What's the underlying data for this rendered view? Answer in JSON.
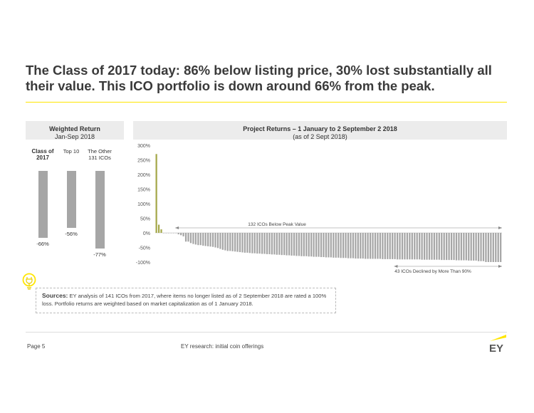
{
  "title": "The Class of 2017 today: 86% below listing price, 30% lost substantially all their value. This ICO portfolio is down around 66% from the peak.",
  "left_panel": {
    "title": "Weighted Return",
    "subtitle": "Jan-Sep 2018"
  },
  "right_panel": {
    "title": "Project Returns – 1 January to 2 September 2 2018",
    "subtitle": "(as of 2 Sept 2018)"
  },
  "sources": {
    "label": "Sources:",
    "text": " EY analysis of 141 ICOs from 2017, where items no longer listed as of 2 September 2018 are rated a 100% loss.  Portfolio returns are weighted based on market capitalization as of 1 January 2018."
  },
  "footer": {
    "page": "Page 5",
    "center": "EY research: initial coin offerings",
    "logo": "EY"
  },
  "colors": {
    "accent": "#ffe600",
    "bar": "#a6a6a6",
    "positive": "#a5a84a"
  },
  "chart_data": [
    {
      "type": "bar",
      "title": "Weighted Return",
      "subtitle": "Jan-Sep 2018",
      "categories": [
        "Class of 2017",
        "Top 10",
        "The Other 131 ICOs"
      ],
      "values": [
        -66,
        -56,
        -77
      ],
      "labels": [
        "-66%",
        "-56%",
        "-77%"
      ]
    },
    {
      "type": "bar",
      "title": "Project Returns – 1 January to 2 September 2 2018",
      "subtitle": "(as of 2 Sept 2018)",
      "ylim": [
        -100,
        300
      ],
      "yticks": [
        "300%",
        "250%",
        "200%",
        "150%",
        "100%",
        "50%",
        "0%",
        "-50%",
        "-100%"
      ],
      "ytick_values": [
        300,
        250,
        200,
        150,
        100,
        50,
        0,
        -50,
        -100
      ],
      "annotations": [
        "132 ICOs Below Peak Value",
        "43 ICOs Declined by More Than 90%"
      ],
      "values": [
        270,
        28,
        12,
        0,
        0,
        0,
        0,
        0,
        0,
        -5,
        -8,
        -12,
        -30,
        -30,
        -35,
        -38,
        -40,
        -42,
        -42,
        -44,
        -45,
        -46,
        -47,
        -48,
        -50,
        -52,
        -55,
        -58,
        -60,
        -62,
        -62,
        -63,
        -64,
        -65,
        -66,
        -67,
        -68,
        -68,
        -69,
        -70,
        -70,
        -71,
        -71,
        -72,
        -72,
        -73,
        -73,
        -74,
        -74,
        -75,
        -75,
        -76,
        -76,
        -77,
        -77,
        -78,
        -78,
        -79,
        -79,
        -80,
        -80,
        -80,
        -81,
        -81,
        -82,
        -82,
        -82,
        -83,
        -83,
        -84,
        -84,
        -84,
        -85,
        -85,
        -85,
        -86,
        -86,
        -86,
        -87,
        -87,
        -87,
        -88,
        -88,
        -88,
        -88,
        -89,
        -89,
        -89,
        -89,
        -89,
        -89,
        -89,
        -90,
        -90,
        -90,
        -90,
        -90,
        -90,
        -91,
        -91,
        -91,
        -91,
        -91,
        -91,
        -91,
        -91,
        -91,
        -91,
        -92,
        -92,
        -92,
        -92,
        -92,
        -92,
        -92,
        -92,
        -93,
        -93,
        -93,
        -93,
        -93,
        -93,
        -94,
        -94,
        -94,
        -94,
        -94,
        -95,
        -95,
        -95,
        -95,
        -97,
        -97,
        -97,
        -100,
        -100,
        -100,
        -100,
        -100,
        -100,
        -100
      ]
    }
  ]
}
